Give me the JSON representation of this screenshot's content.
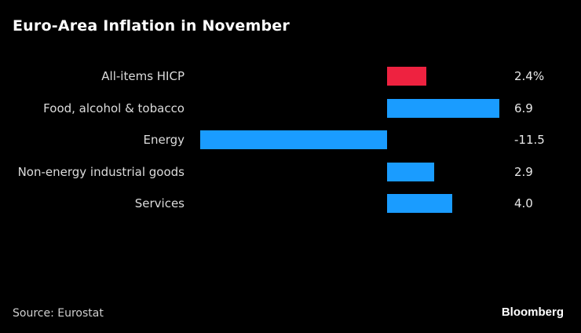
{
  "chart_data": {
    "type": "bar",
    "orientation": "horizontal",
    "title": "Euro-Area Inflation in November",
    "categories": [
      "All-items HICP",
      "Food, alcohol & tobacco",
      "Energy",
      "Non-energy industrial goods",
      "Services"
    ],
    "values": [
      2.4,
      6.9,
      -11.5,
      2.9,
      4.0
    ],
    "value_labels": [
      "2.4%",
      "6.9",
      "-11.5",
      "2.9",
      "4.0"
    ],
    "bar_colors": [
      "#ee2240",
      "#1a9cff",
      "#1a9cff",
      "#1a9cff",
      "#1a9cff"
    ],
    "xlabel": "",
    "ylabel": "",
    "xlim": [
      -11.5,
      6.9
    ],
    "grid": false,
    "legend": "none",
    "source": "Source: Eurostat",
    "brand": "Bloomberg"
  }
}
